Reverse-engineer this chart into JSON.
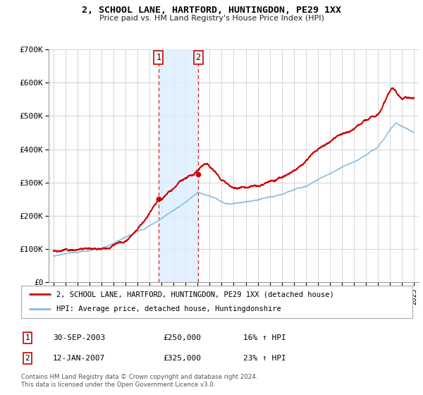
{
  "title": "2, SCHOOL LANE, HARTFORD, HUNTINGDON, PE29 1XX",
  "subtitle": "Price paid vs. HM Land Registry's House Price Index (HPI)",
  "background_color": "#ffffff",
  "plot_bg_color": "#ffffff",
  "grid_color": "#cccccc",
  "sale1_year": 2003.75,
  "sale1_price": 250000,
  "sale2_year": 2007.04,
  "sale2_price": 325000,
  "shade_color": "#ddeeff",
  "vline_color": "#cc0000",
  "house_line_color": "#cc0000",
  "hpi_line_color": "#88bbdd",
  "legend_house": "2, SCHOOL LANE, HARTFORD, HUNTINGDON, PE29 1XX (detached house)",
  "legend_hpi": "HPI: Average price, detached house, Huntingdonshire",
  "footer1": "Contains HM Land Registry data © Crown copyright and database right 2024.",
  "footer2": "This data is licensed under the Open Government Licence v3.0.",
  "ylim": [
    0,
    700000
  ],
  "yticks": [
    0,
    100000,
    200000,
    300000,
    400000,
    500000,
    600000,
    700000
  ],
  "ytick_labels": [
    "£0",
    "£100K",
    "£200K",
    "£300K",
    "£400K",
    "£500K",
    "£600K",
    "£700K"
  ],
  "xstart_year": 1995,
  "xend_year": 2025,
  "table_row1": [
    "1",
    "30-SEP-2003",
    "£250,000",
    "16% ↑ HPI"
  ],
  "table_row2": [
    "2",
    "12-JAN-2007",
    "£325,000",
    "23% ↑ HPI"
  ]
}
